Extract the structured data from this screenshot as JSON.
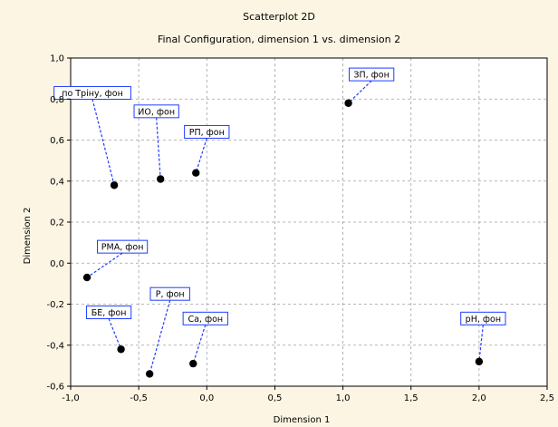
{
  "chart_data": {
    "type": "scatter",
    "title": "Scatterplot 2D",
    "subtitle": "Final Configuration, dimension 1  vs. dimension 2",
    "xlabel": "Dimension 1",
    "ylabel": "Dimension 2",
    "xlim": [
      -1.0,
      2.5
    ],
    "ylim": [
      -0.6,
      1.0
    ],
    "xticks": [
      "-1,0",
      "-0,5",
      "0,0",
      "0,5",
      "1,0",
      "1,5",
      "2,0",
      "2,5"
    ],
    "yticks": [
      "1,0",
      "0,8",
      "0,6",
      "0,4",
      "0,2",
      "0,0",
      "-0,2",
      "-0,4",
      "-0,6"
    ],
    "grid": true,
    "points": [
      {
        "label": "по Тріну, фон",
        "x": -0.68,
        "y": 0.38,
        "label_pos": [
          -0.84,
          0.83
        ]
      },
      {
        "label": "ИО, фон",
        "x": -0.34,
        "y": 0.41,
        "label_pos": [
          -0.37,
          0.74
        ]
      },
      {
        "label": "РП, фон",
        "x": -0.08,
        "y": 0.44,
        "label_pos": [
          0.0,
          0.64
        ]
      },
      {
        "label": "ЗП, фон",
        "x": 1.04,
        "y": 0.78,
        "label_pos": [
          1.21,
          0.92
        ]
      },
      {
        "label": "РМА, фон",
        "x": -0.88,
        "y": -0.07,
        "label_pos": [
          -0.62,
          0.08
        ]
      },
      {
        "label": "Р, фон",
        "x": -0.42,
        "y": -0.54,
        "label_pos": [
          -0.27,
          -0.15
        ]
      },
      {
        "label": "БЕ, фон",
        "x": -0.63,
        "y": -0.42,
        "label_pos": [
          -0.72,
          -0.24
        ]
      },
      {
        "label": "Са, фон",
        "x": -0.1,
        "y": -0.49,
        "label_pos": [
          -0.01,
          -0.27
        ]
      },
      {
        "label": "рН, фон",
        "x": 2.0,
        "y": -0.48,
        "label_pos": [
          2.03,
          -0.27
        ]
      }
    ]
  }
}
